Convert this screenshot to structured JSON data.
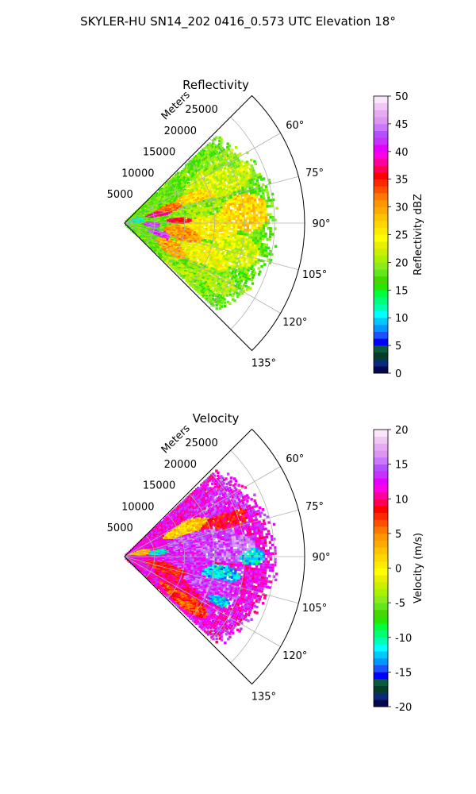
{
  "figure": {
    "title": "SKYLER-HU  SN14_202  0416_0.573 UTC Elevation 18°"
  },
  "chart_data": [
    {
      "type": "heatmap",
      "subtype": "polar-sector",
      "title": "Reflectivity",
      "range_label": "Meters",
      "range_ticks": [
        5000,
        10000,
        15000,
        20000,
        25000
      ],
      "range_limit": [
        0,
        30000
      ],
      "azimuth_ticks": [
        "60°",
        "75°",
        "90°",
        "105°",
        "120°",
        "135°"
      ],
      "azimuth_tick_values": [
        60,
        75,
        90,
        105,
        120,
        135
      ],
      "azimuth_range": [
        45,
        135
      ],
      "grid": true,
      "colorbar": {
        "label": "Reflectivity dBZ",
        "range": [
          0,
          50
        ],
        "ticks": [
          0,
          5,
          10,
          15,
          20,
          25,
          30,
          35,
          40,
          45,
          50
        ],
        "colors": [
          "#02084f",
          "#0a2a7a",
          "#063d2a",
          "#0b5a3d",
          "#0000ff",
          "#1e50ff",
          "#0096ff",
          "#00c8ff",
          "#00ffff",
          "#00ffb4",
          "#00ff78",
          "#00ff3c",
          "#28e600",
          "#46d700",
          "#64e61e",
          "#8ceb1e",
          "#aaf000",
          "#c8f000",
          "#e6f000",
          "#ffff00",
          "#ffeb00",
          "#ffd700",
          "#ffc300",
          "#ffaa00",
          "#ff9600",
          "#ff7800",
          "#ff5000",
          "#ff2800",
          "#ff0000",
          "#ff0050",
          "#ff00a0",
          "#ff00e6",
          "#e600ff",
          "#c832ff",
          "#b450ff",
          "#c878ff",
          "#dc96f0",
          "#e6aaf0",
          "#f0c8f5",
          "#fae6fa"
        ]
      },
      "features": [
        {
          "az": 60,
          "r": 19500,
          "w": 6,
          "h": 6000,
          "v": 20
        },
        {
          "az": 65,
          "r": 17000,
          "w": 10,
          "h": 6000,
          "v": 22
        },
        {
          "az": 70,
          "r": 13000,
          "w": 6,
          "h": 4500,
          "v": 27
        },
        {
          "az": 73,
          "r": 8000,
          "w": 6,
          "h": 3000,
          "v": 32
        },
        {
          "az": 76,
          "r": 6000,
          "w": 5,
          "h": 2500,
          "v": 38
        },
        {
          "az": 80,
          "r": 12000,
          "w": 10,
          "h": 5000,
          "v": 20
        },
        {
          "az": 85,
          "r": 20000,
          "w": 9,
          "h": 4000,
          "v": 27
        },
        {
          "az": 88,
          "r": 9500,
          "w": 4,
          "h": 2500,
          "v": 36
        },
        {
          "az": 92,
          "r": 14000,
          "w": 10,
          "h": 5000,
          "v": 25
        },
        {
          "az": 95,
          "r": 4500,
          "w": 6,
          "h": 1500,
          "v": 42
        },
        {
          "az": 100,
          "r": 10000,
          "w": 8,
          "h": 3500,
          "v": 30
        },
        {
          "az": 104,
          "r": 19000,
          "w": 8,
          "h": 4000,
          "v": 22
        },
        {
          "az": 108,
          "r": 6000,
          "w": 5,
          "h": 2000,
          "v": 42
        },
        {
          "az": 112,
          "r": 14000,
          "w": 8,
          "h": 5000,
          "v": 24
        },
        {
          "az": 118,
          "r": 9000,
          "w": 8,
          "h": 3000,
          "v": 30
        },
        {
          "az": 122,
          "r": 17000,
          "w": 6,
          "h": 4500,
          "v": 20
        },
        {
          "az": 130,
          "r": 12000,
          "w": 6,
          "h": 4000,
          "v": 20
        },
        {
          "az": 83,
          "r": 1500,
          "w": 12,
          "h": 1800,
          "v": 12
        }
      ]
    },
    {
      "type": "heatmap",
      "subtype": "polar-sector",
      "title": "Velocity",
      "range_label": "Meters",
      "range_ticks": [
        5000,
        10000,
        15000,
        20000,
        25000
      ],
      "range_limit": [
        0,
        30000
      ],
      "azimuth_ticks": [
        "60°",
        "75°",
        "90°",
        "105°",
        "120°",
        "135°"
      ],
      "azimuth_tick_values": [
        60,
        75,
        90,
        105,
        120,
        135
      ],
      "azimuth_range": [
        45,
        135
      ],
      "grid": true,
      "colorbar": {
        "label": "Velocity (m/s)",
        "range": [
          -20,
          20
        ],
        "ticks": [
          -20,
          -15,
          -10,
          -5,
          0,
          5,
          10,
          15,
          20
        ],
        "colors": [
          "#02084f",
          "#0a2a7a",
          "#063d2a",
          "#0b5a3d",
          "#0000ff",
          "#1e50ff",
          "#0096ff",
          "#00c8ff",
          "#00ffff",
          "#00ffb4",
          "#00ff78",
          "#00ff3c",
          "#28e600",
          "#46d700",
          "#64e61e",
          "#8ceb1e",
          "#aaf000",
          "#c8f000",
          "#e6f000",
          "#ffff00",
          "#ffeb00",
          "#ffd700",
          "#ffc300",
          "#ffaa00",
          "#ff9600",
          "#ff7800",
          "#ff5000",
          "#ff2800",
          "#ff0000",
          "#ff0050",
          "#ff00a0",
          "#ff00e6",
          "#e600ff",
          "#c832ff",
          "#b450ff",
          "#c878ff",
          "#dc96f0",
          "#e6aaf0",
          "#f0c8f5",
          "#fae6fa"
        ]
      },
      "features": [
        {
          "az": 62,
          "r": 18000,
          "w": 8,
          "h": 6000,
          "v": 13
        },
        {
          "az": 66,
          "r": 12000,
          "w": 6,
          "h": 5000,
          "v": 2
        },
        {
          "az": 70,
          "r": 17000,
          "w": 6,
          "h": 5000,
          "v": 9
        },
        {
          "az": 78,
          "r": 13000,
          "w": 10,
          "h": 6000,
          "v": 14
        },
        {
          "az": 84,
          "r": 5500,
          "w": 5,
          "h": 2000,
          "v": -11
        },
        {
          "az": 86,
          "r": 17000,
          "w": 8,
          "h": 5000,
          "v": 15
        },
        {
          "az": 90,
          "r": 21000,
          "w": 4,
          "h": 2500,
          "v": -12
        },
        {
          "az": 95,
          "r": 10000,
          "w": 10,
          "h": 5000,
          "v": 13
        },
        {
          "az": 100,
          "r": 16000,
          "w": 5,
          "h": 3500,
          "v": -12
        },
        {
          "az": 106,
          "r": 7000,
          "w": 8,
          "h": 4000,
          "v": 8
        },
        {
          "az": 110,
          "r": 15000,
          "w": 8,
          "h": 5000,
          "v": 14
        },
        {
          "az": 114,
          "r": 17000,
          "w": 4,
          "h": 2500,
          "v": -12
        },
        {
          "az": 118,
          "r": 10000,
          "w": 8,
          "h": 4500,
          "v": 10
        },
        {
          "az": 126,
          "r": 12000,
          "w": 6,
          "h": 5000,
          "v": 7
        },
        {
          "az": 80,
          "r": 2500,
          "w": 10,
          "h": 2000,
          "v": 3
        }
      ]
    }
  ]
}
